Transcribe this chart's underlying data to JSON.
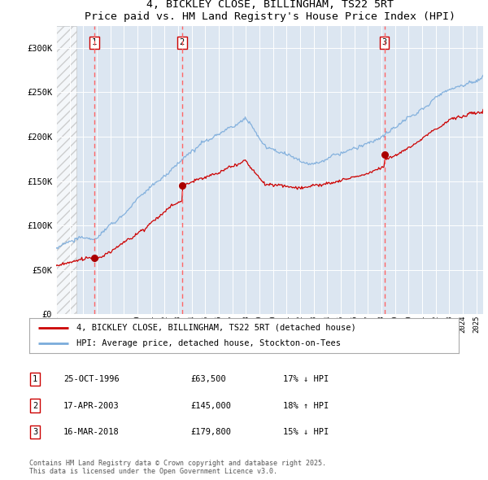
{
  "title_line1": "4, BICKLEY CLOSE, BILLINGHAM, TS22 5RT",
  "title_line2": "Price paid vs. HM Land Registry's House Price Index (HPI)",
  "xlim_start": 1994.0,
  "xlim_end": 2025.5,
  "ylim_min": 0,
  "ylim_max": 300000,
  "yticks": [
    0,
    50000,
    100000,
    150000,
    200000,
    250000,
    300000
  ],
  "ytick_labels": [
    "£0",
    "£50K",
    "£100K",
    "£150K",
    "£200K",
    "£250K",
    "£300K"
  ],
  "hatch_region_end": 1995.5,
  "transaction_dates": [
    1996.81,
    2003.29,
    2018.21
  ],
  "transaction_prices": [
    63500,
    145000,
    179800
  ],
  "transaction_labels": [
    "1",
    "2",
    "3"
  ],
  "legend_line1": "4, BICKLEY CLOSE, BILLINGHAM, TS22 5RT (detached house)",
  "legend_line2": "HPI: Average price, detached house, Stockton-on-Tees",
  "table_rows": [
    {
      "label": "1",
      "date": "25-OCT-1996",
      "price": "£63,500",
      "hpi": "17% ↓ HPI"
    },
    {
      "label": "2",
      "date": "17-APR-2003",
      "price": "£145,000",
      "hpi": "18% ↑ HPI"
    },
    {
      "label": "3",
      "date": "16-MAR-2018",
      "price": "£179,800",
      "hpi": "15% ↓ HPI"
    }
  ],
  "footnote": "Contains HM Land Registry data © Crown copyright and database right 2025.\nThis data is licensed under the Open Government Licence v3.0.",
  "bg_color": "#dce6f1",
  "fig_bg_color": "#ffffff",
  "red_line_color": "#cc0000",
  "blue_line_color": "#7aabdb",
  "dashed_line_color": "#ff6666",
  "marker_color": "#aa0000"
}
